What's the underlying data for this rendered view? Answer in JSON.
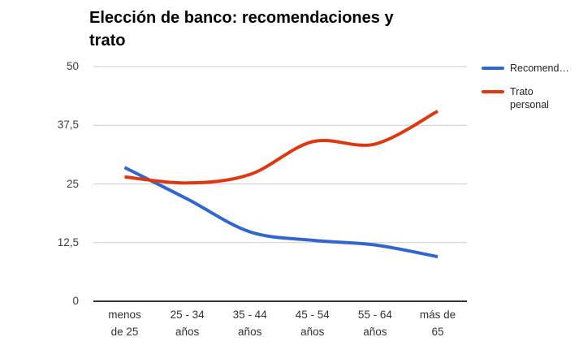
{
  "title_display": "Elección de banco: recomendaciones y\ntrato",
  "legend": {
    "items": [
      {
        "label": "Recomend…",
        "color": "#3366cc"
      },
      {
        "label": "Trato personal",
        "color": "#dc3912"
      }
    ]
  },
  "chart_data": {
    "type": "line",
    "title": "Elección de banco: recomendaciones y trato",
    "categories": [
      "menos de 25",
      "25 - 34 años",
      "35 - 44 años",
      "45 - 54 años",
      "55 - 64 años",
      "más de 65"
    ],
    "tick_labels_2line": [
      "menos\nde 25",
      "25 - 34\naños",
      "35 - 44\naños",
      "45 - 54\naños",
      "55 - 64\naños",
      "más de\n65"
    ],
    "series": [
      {
        "name": "Recomend…",
        "color": "#3366cc",
        "values": [
          28.5,
          21.8,
          14.8,
          13,
          12,
          9.5
        ]
      },
      {
        "name": "Trato personal",
        "color": "#dc3912",
        "values": [
          26.5,
          25.2,
          27,
          34,
          33.5,
          40.5
        ]
      }
    ],
    "xlabel": "",
    "ylabel": "",
    "ylim": [
      0,
      50
    ],
    "yticks": [
      0,
      12.5,
      25,
      37.5,
      50
    ],
    "ytick_labels": [
      "0",
      "12,5",
      "25",
      "37,5",
      "50"
    ],
    "grid": true,
    "legend_position": "right",
    "curve": "smooth",
    "colors": {
      "gridline": "#cccccc",
      "baseline": "#333333",
      "axis_text": "#404040",
      "title_text": "#000000"
    }
  }
}
